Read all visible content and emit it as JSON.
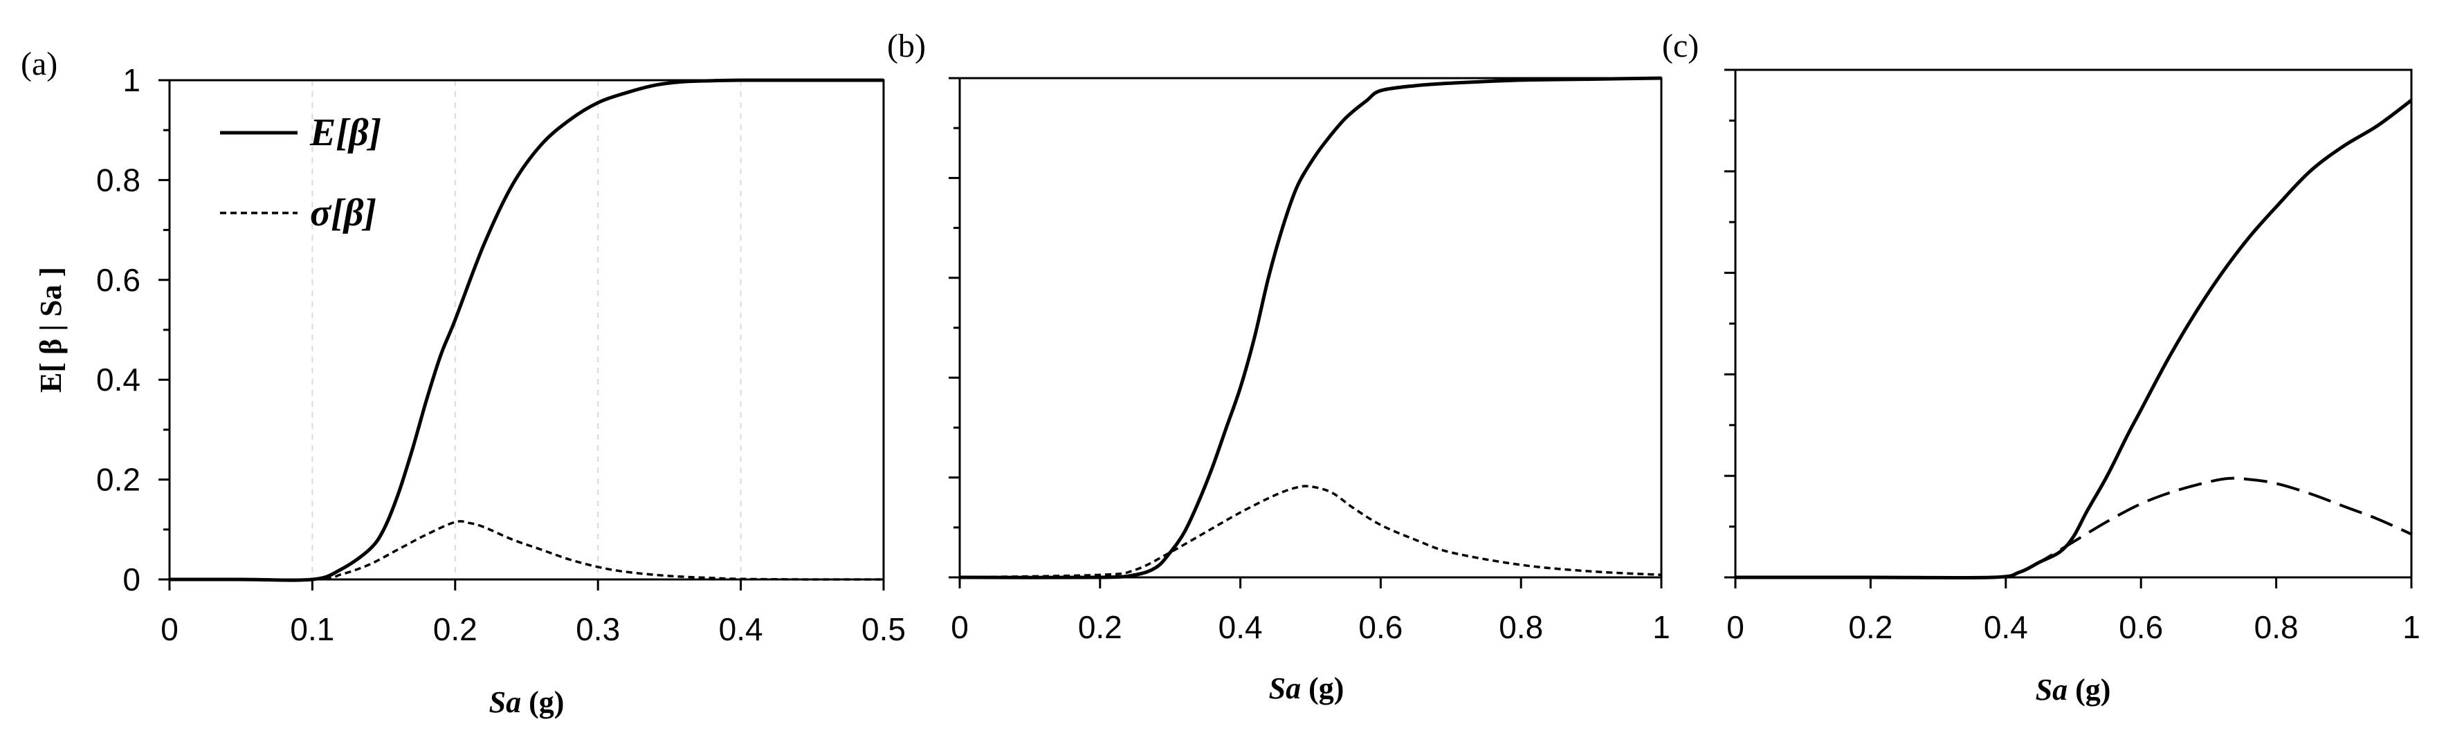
{
  "chart_data": [
    {
      "type": "line",
      "panel_label": "(a)",
      "title": "",
      "xlabel_italic": "Sa",
      "xlabel_unit": " (g)",
      "ylabel": "E[ β | Sa ]",
      "xlim": [
        0,
        0.5
      ],
      "ylim": [
        0,
        1
      ],
      "x_ticks": [
        "0",
        "0.1",
        "0.2",
        "0.3",
        "0.4",
        "0.5"
      ],
      "x_tick_values": [
        0,
        0.1,
        0.2,
        0.3,
        0.4,
        0.5
      ],
      "y_ticks": [
        "0",
        "0.2",
        "0.4",
        "0.6",
        "0.8",
        "1"
      ],
      "y_tick_values": [
        0,
        0.2,
        0.4,
        0.6,
        0.8,
        1
      ],
      "grid": "vertical dashed at x ticks",
      "legend": {
        "placement": "top-left",
        "entries": [
          "E[β]",
          "σ[β]"
        ]
      },
      "series": [
        {
          "name": "E[β]",
          "style": "solid",
          "x": [
            0,
            0.05,
            0.1,
            0.12,
            0.14,
            0.15,
            0.16,
            0.17,
            0.18,
            0.19,
            0.2,
            0.22,
            0.24,
            0.26,
            0.28,
            0.3,
            0.32,
            0.34,
            0.36,
            0.38,
            0.4,
            0.45,
            0.5
          ],
          "y": [
            0,
            0,
            0,
            0.02,
            0.06,
            0.1,
            0.17,
            0.26,
            0.36,
            0.45,
            0.52,
            0.67,
            0.79,
            0.87,
            0.92,
            0.955,
            0.975,
            0.99,
            0.997,
            0.999,
            1,
            1,
            1
          ]
        },
        {
          "name": "σ[β]",
          "style": "dashed",
          "x": [
            0,
            0.1,
            0.12,
            0.14,
            0.16,
            0.18,
            0.2,
            0.21,
            0.22,
            0.24,
            0.26,
            0.28,
            0.3,
            0.32,
            0.35,
            0.38,
            0.4,
            0.45,
            0.5
          ],
          "y": [
            0,
            0,
            0.01,
            0.03,
            0.06,
            0.09,
            0.115,
            0.113,
            0.105,
            0.08,
            0.06,
            0.04,
            0.025,
            0.015,
            0.007,
            0.003,
            0.001,
            0,
            0
          ]
        }
      ]
    },
    {
      "type": "line",
      "panel_label": "(b)",
      "title": "",
      "xlabel_italic": "Sa",
      "xlabel_unit": " (g)",
      "xlim": [
        0,
        1
      ],
      "ylim": [
        0,
        1
      ],
      "x_ticks": [
        "0",
        "0.2",
        "0.4",
        "0.6",
        "0.8",
        "1"
      ],
      "x_tick_values": [
        0,
        0.2,
        0.4,
        0.6,
        0.8,
        1
      ],
      "y_tick_values": [
        0,
        0.2,
        0.4,
        0.6,
        0.8,
        1
      ],
      "series": [
        {
          "name": "E[β]",
          "style": "solid",
          "x": [
            0,
            0.2,
            0.25,
            0.28,
            0.3,
            0.32,
            0.34,
            0.36,
            0.38,
            0.4,
            0.42,
            0.44,
            0.46,
            0.48,
            0.5,
            0.52,
            0.55,
            0.58,
            0.6,
            0.65,
            0.7,
            0.8,
            0.9,
            1
          ],
          "y": [
            0,
            0,
            0.005,
            0.02,
            0.05,
            0.09,
            0.15,
            0.22,
            0.3,
            0.38,
            0.48,
            0.6,
            0.7,
            0.78,
            0.83,
            0.87,
            0.92,
            0.955,
            0.975,
            0.985,
            0.99,
            0.996,
            0.998,
            1
          ]
        },
        {
          "name": "σ[β]",
          "style": "dashed",
          "x": [
            0,
            0.2,
            0.25,
            0.3,
            0.35,
            0.4,
            0.45,
            0.48,
            0.5,
            0.53,
            0.56,
            0.6,
            0.65,
            0.7,
            0.8,
            0.9,
            1
          ],
          "y": [
            0,
            0.005,
            0.015,
            0.05,
            0.09,
            0.13,
            0.165,
            0.18,
            0.182,
            0.17,
            0.14,
            0.105,
            0.075,
            0.05,
            0.025,
            0.012,
            0.005
          ]
        }
      ]
    },
    {
      "type": "line",
      "panel_label": "(c)",
      "title": "",
      "xlabel_italic": "Sa",
      "xlabel_unit": " (g)",
      "xlim": [
        0,
        1
      ],
      "ylim": [
        0,
        1
      ],
      "x_ticks": [
        "0",
        "0.2",
        "0.4",
        "0.6",
        "0.8",
        "1"
      ],
      "x_tick_values": [
        0,
        0.2,
        0.4,
        0.6,
        0.8,
        1
      ],
      "y_tick_values": [
        0,
        0.2,
        0.4,
        0.6,
        0.8,
        1
      ],
      "series": [
        {
          "name": "E[β]",
          "style": "solid",
          "x": [
            0,
            0.2,
            0.38,
            0.42,
            0.45,
            0.48,
            0.5,
            0.52,
            0.55,
            0.58,
            0.6,
            0.64,
            0.68,
            0.72,
            0.76,
            0.8,
            0.85,
            0.9,
            0.95,
            1
          ],
          "y": [
            0,
            0,
            0,
            0.01,
            0.03,
            0.05,
            0.08,
            0.13,
            0.2,
            0.28,
            0.33,
            0.43,
            0.52,
            0.6,
            0.67,
            0.73,
            0.8,
            0.85,
            0.89,
            0.94
          ]
        },
        {
          "name": "σ[β]",
          "style": "long-dashed",
          "x": [
            0,
            0.2,
            0.38,
            0.42,
            0.45,
            0.5,
            0.55,
            0.6,
            0.65,
            0.7,
            0.73,
            0.76,
            0.8,
            0.85,
            0.9,
            0.95,
            1
          ],
          "y": [
            0,
            0,
            0,
            0.01,
            0.03,
            0.07,
            0.11,
            0.145,
            0.17,
            0.188,
            0.195,
            0.193,
            0.185,
            0.165,
            0.14,
            0.115,
            0.085
          ]
        }
      ]
    }
  ]
}
